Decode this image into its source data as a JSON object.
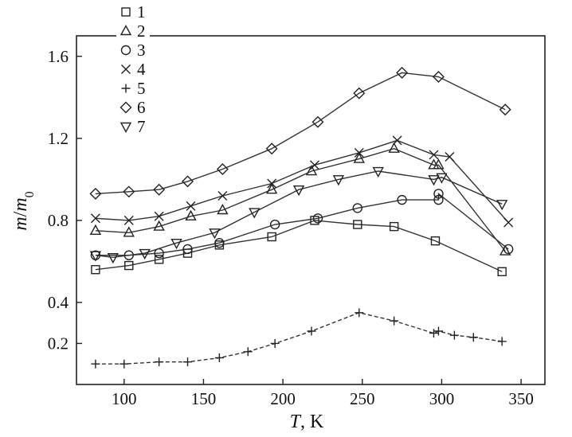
{
  "chart_data": {
    "type": "line",
    "xlabel": {
      "var": "T",
      "rest": ", K"
    },
    "ylabel": {
      "var": "m",
      "slash": "/",
      "var2": "m",
      "sub": "0"
    },
    "xlim": [
      70,
      365
    ],
    "ylim": [
      0.0,
      1.7
    ],
    "xticks": [
      100,
      150,
      200,
      250,
      300,
      350
    ],
    "yticks": [
      0.2,
      0.4,
      0.8,
      1.2,
      1.6
    ],
    "xtick_labels": [
      "100",
      "150",
      "200",
      "250",
      "300",
      "350"
    ],
    "ytick_labels": [
      "0.2",
      "0.4",
      "0.8",
      "1.2",
      "1.6"
    ],
    "grid": false,
    "legend_position": "top-left",
    "series": [
      {
        "name": "1",
        "marker": "square",
        "points": [
          [
            82,
            0.56
          ],
          [
            103,
            0.58
          ],
          [
            122,
            0.61
          ],
          [
            140,
            0.64
          ],
          [
            160,
            0.68
          ],
          [
            193,
            0.72
          ],
          [
            220,
            0.8
          ],
          [
            247,
            0.78
          ],
          [
            270,
            0.77
          ],
          [
            296,
            0.7
          ],
          [
            338,
            0.55
          ]
        ]
      },
      {
        "name": "2",
        "marker": "triangle-up",
        "points": [
          [
            82,
            0.75
          ],
          [
            103,
            0.74
          ],
          [
            122,
            0.77
          ],
          [
            142,
            0.82
          ],
          [
            162,
            0.85
          ],
          [
            193,
            0.95
          ],
          [
            218,
            1.04
          ],
          [
            248,
            1.1
          ],
          [
            270,
            1.15
          ],
          [
            295,
            1.07
          ],
          [
            298,
            1.07
          ],
          [
            340,
            0.65
          ]
        ]
      },
      {
        "name": "3",
        "marker": "circle",
        "points": [
          [
            82,
            0.63
          ],
          [
            103,
            0.63
          ],
          [
            122,
            0.64
          ],
          [
            140,
            0.66
          ],
          [
            160,
            0.69
          ],
          [
            195,
            0.78
          ],
          [
            222,
            0.81
          ],
          [
            247,
            0.86
          ],
          [
            275,
            0.9
          ],
          [
            298,
            0.9
          ],
          [
            298,
            0.93
          ],
          [
            342,
            0.66
          ]
        ]
      },
      {
        "name": "4",
        "marker": "x",
        "points": [
          [
            82,
            0.81
          ],
          [
            103,
            0.8
          ],
          [
            122,
            0.82
          ],
          [
            142,
            0.87
          ],
          [
            162,
            0.92
          ],
          [
            193,
            0.98
          ],
          [
            220,
            1.07
          ],
          [
            248,
            1.13
          ],
          [
            272,
            1.19
          ],
          [
            295,
            1.12
          ],
          [
            305,
            1.11
          ],
          [
            342,
            0.79
          ]
        ]
      },
      {
        "name": "5",
        "marker": "plus",
        "points": [
          [
            82,
            0.1
          ],
          [
            100,
            0.1
          ],
          [
            122,
            0.11
          ],
          [
            140,
            0.11
          ],
          [
            160,
            0.13
          ],
          [
            178,
            0.16
          ],
          [
            195,
            0.2
          ],
          [
            218,
            0.26
          ],
          [
            248,
            0.35
          ],
          [
            270,
            0.31
          ],
          [
            295,
            0.25
          ],
          [
            298,
            0.26
          ],
          [
            308,
            0.24
          ],
          [
            320,
            0.23
          ],
          [
            338,
            0.21
          ]
        ]
      },
      {
        "name": "6",
        "marker": "diamond",
        "points": [
          [
            82,
            0.93
          ],
          [
            103,
            0.94
          ],
          [
            122,
            0.95
          ],
          [
            140,
            0.99
          ],
          [
            162,
            1.05
          ],
          [
            193,
            1.15
          ],
          [
            222,
            1.28
          ],
          [
            248,
            1.42
          ],
          [
            275,
            1.52
          ],
          [
            298,
            1.5
          ],
          [
            340,
            1.34
          ]
        ]
      },
      {
        "name": "7",
        "marker": "triangle-down",
        "points": [
          [
            82,
            0.63
          ],
          [
            93,
            0.62
          ],
          [
            113,
            0.64
          ],
          [
            133,
            0.69
          ],
          [
            157,
            0.74
          ],
          [
            182,
            0.84
          ],
          [
            210,
            0.95
          ],
          [
            235,
            1.0
          ],
          [
            260,
            1.04
          ],
          [
            295,
            1.0
          ],
          [
            300,
            1.01
          ],
          [
            338,
            0.88
          ]
        ]
      }
    ]
  }
}
